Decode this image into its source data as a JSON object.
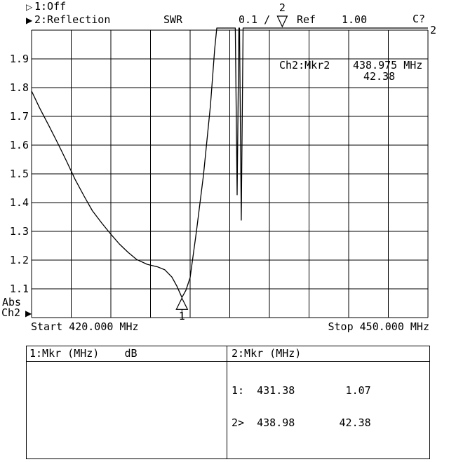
{
  "header": {
    "ch1": {
      "indicator": "▷",
      "label": "1:Off"
    },
    "ch2": {
      "indicator": "▶",
      "label": "2:Reflection"
    },
    "format": "SWR",
    "scale": "0.1 /",
    "ref_label": "Ref",
    "ref_value": "1.00",
    "cal_status": "C?"
  },
  "plot": {
    "abs_label": "Abs",
    "channel_label": "Ch2",
    "channel_indicator": "▶",
    "start_label": "Start 420.000 MHz",
    "stop_label": "Stop 450.000 MHz",
    "trace_number_right": "2",
    "marker_readout": {
      "title": "Ch2:Mkr2",
      "frequency": "438.975 MHz",
      "value": "42.38"
    }
  },
  "chart_data": {
    "type": "line",
    "title": "Ch2 Reflection SWR",
    "x_unit": "MHz",
    "xlim": [
      420.0,
      450.0
    ],
    "y_unit": "SWR",
    "ylim": [
      1.0,
      2.0
    ],
    "scale_per_div": 0.1,
    "ref": 1.0,
    "grid": true,
    "x_divisions": 10,
    "y_divisions": 10,
    "yticks": [
      1.9,
      1.8,
      1.7,
      1.6,
      1.5,
      1.4,
      1.3,
      1.2,
      1.1
    ],
    "series": [
      {
        "name": "Ch2 SWR",
        "points": [
          [
            420.0,
            1.788
          ],
          [
            420.6,
            1.73
          ],
          [
            421.33,
            1.666
          ],
          [
            422.0,
            1.605
          ],
          [
            422.65,
            1.544
          ],
          [
            423.3,
            1.48
          ],
          [
            423.98,
            1.422
          ],
          [
            424.6,
            1.372
          ],
          [
            425.31,
            1.329
          ],
          [
            426.0,
            1.29
          ],
          [
            426.64,
            1.256
          ],
          [
            427.3,
            1.227
          ],
          [
            427.96,
            1.202
          ],
          [
            428.76,
            1.185
          ],
          [
            429.56,
            1.176
          ],
          [
            430.09,
            1.166
          ],
          [
            430.62,
            1.141
          ],
          [
            430.99,
            1.11
          ],
          [
            431.38,
            1.07
          ],
          [
            431.68,
            1.095
          ],
          [
            432.0,
            1.139
          ],
          [
            432.48,
            1.3
          ],
          [
            433.01,
            1.495
          ],
          [
            433.54,
            1.739
          ],
          [
            433.86,
            1.934
          ],
          [
            434.02,
            2.1
          ],
          [
            435.42,
            2.1
          ],
          [
            435.56,
            1.427
          ],
          [
            435.69,
            2.1
          ],
          [
            435.74,
            2.1
          ],
          [
            435.87,
            1.339
          ],
          [
            436.01,
            2.1
          ],
          [
            438.975,
            42.38
          ],
          [
            450.0,
            2.1
          ]
        ]
      }
    ],
    "markers": [
      {
        "label": "1",
        "freq_mhz": 431.38,
        "value": 1.07
      },
      {
        "label": "2",
        "freq_mhz": 438.975,
        "value": 42.38,
        "active": true
      }
    ]
  },
  "marker_table": {
    "ch1": {
      "header": "1:Mkr (MHz)    dB",
      "rows": []
    },
    "ch2": {
      "header": "2:Mkr (MHz)",
      "rows": [
        "1:  431.38        1.07",
        "2>  438.98       42.38"
      ]
    }
  }
}
